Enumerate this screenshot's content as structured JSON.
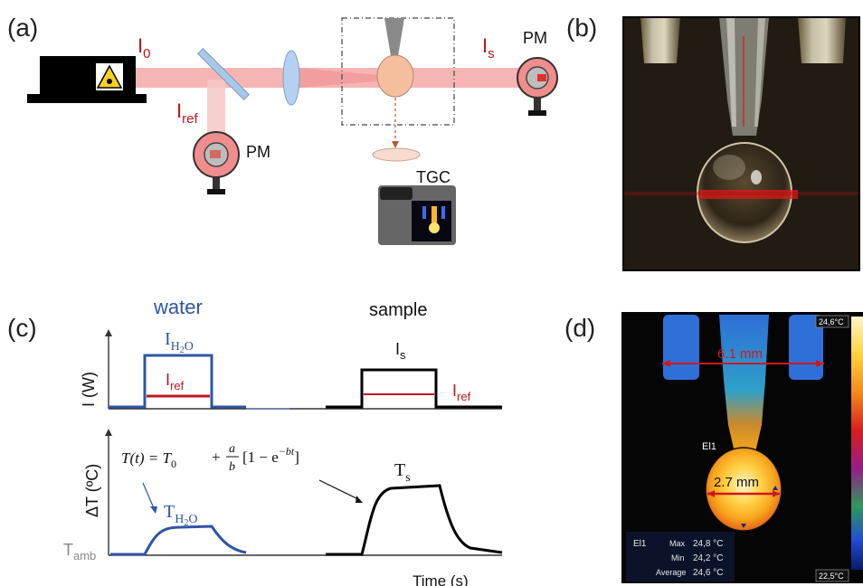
{
  "panel_labels": {
    "a": "(a)",
    "b": "(b)",
    "c": "(c)",
    "d": "(d)"
  },
  "setup": {
    "i0": "I",
    "i0_sub": "0",
    "is": "I",
    "is_sub": "s",
    "iref": "I",
    "iref_sub": "ref",
    "pm_label": "PM",
    "tgc_label": "TGC"
  },
  "plots": {
    "water_title": "water",
    "sample_title": "sample",
    "ylabel_top": "I (W)",
    "ylabel_bottom": "ΔT (ºC)",
    "xlabel": "Time (s)",
    "i_h2o": "I",
    "i_h2o_sub": "H",
    "i_h2o_sub2": "2",
    "i_h2o_o": "O",
    "iref_left": "I",
    "iref_left_sub": "ref",
    "is_label": "I",
    "is_label_sub": "s",
    "iref_right": "I",
    "iref_right_sub": "ref",
    "equation_lhs": "T(t) = T",
    "equation_t0_sub": "0",
    "equation_plus": "+",
    "equation_num": "a",
    "equation_den": "b",
    "equation_rhs": "[1 − e",
    "equation_exp": "−bt",
    "equation_close": "]",
    "t_h2o": "T",
    "t_h2o_sub": "H",
    "t_h2o_sub2": "2",
    "t_h2o_o": "O",
    "ts_label": "T",
    "ts_sub": "s",
    "tamb": "T",
    "tamb_sub": "amb",
    "colors": {
      "water": "#2f55a4",
      "sample": "#000000",
      "ref": "#c0161c"
    }
  },
  "thermal": {
    "scale_max": "24,6°C",
    "scale_min": "22,5°C",
    "width_top": "6.1 mm",
    "width_drop": "2.7 mm",
    "el_tag": "El1",
    "stats_name": "El1",
    "max_label": "Max",
    "max_val": "24,8 °C",
    "min_label": "Min",
    "min_val": "24,2 °C",
    "avg_label": "Average",
    "avg_val": "24,6 °C"
  }
}
